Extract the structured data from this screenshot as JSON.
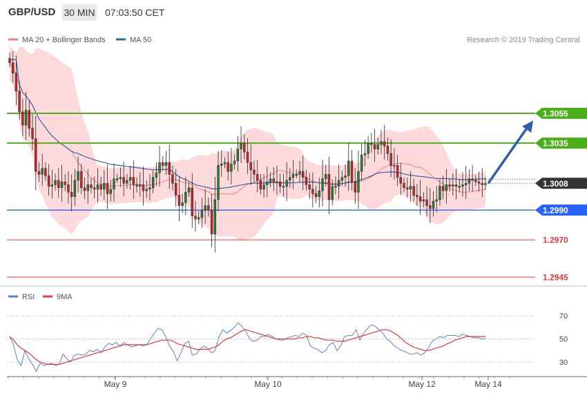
{
  "header": {
    "symbol": "GBP/USD",
    "timeframe": "30 MIN",
    "time": "07:03:50 CET"
  },
  "credit": "Research © 2019 Trading Central",
  "colors": {
    "bull_candle": "#2e7d32",
    "bear_candle": "#c62828",
    "bollinger_fill": "#fbd3d6",
    "ma20": "#f08080",
    "ma50": "#3a5fa8",
    "resistance": "#4caf1a",
    "support": "#2962ff",
    "target": "#e53935",
    "arrow": "#2f5da8",
    "rsi": "#5a7fd6",
    "rsi_ma": "#e53935",
    "price_tag": "#333333"
  },
  "chart_data": [
    {
      "type": "candlestick",
      "legend": [
        {
          "name": "MA 20 + Bollinger Bands",
          "color": "#f08080"
        },
        {
          "name": "MA 50",
          "color": "#3a5fa8"
        }
      ],
      "ylim": [
        1.2936,
        1.311
      ],
      "x_ticks": [
        "May 9",
        "May 10",
        "May 12",
        "May 14"
      ],
      "current_price": "1.3008",
      "levels": [
        {
          "label": "1.3055",
          "value": 1.3055,
          "kind": "resistance"
        },
        {
          "label": "1.3035",
          "value": 1.3035,
          "kind": "resistance"
        },
        {
          "label": "1.2990",
          "value": 1.299,
          "kind": "support"
        },
        {
          "label": "1.2970",
          "value": 1.297,
          "kind": "target"
        },
        {
          "label": "1.2945",
          "value": 1.2945,
          "kind": "target"
        }
      ],
      "projection": {
        "from": 1.3008,
        "to": 1.3052
      },
      "close": [
        1.3089,
        1.3082,
        1.307,
        1.3056,
        1.3047,
        1.3057,
        1.3045,
        1.3038,
        1.3016,
        1.3014,
        1.3018,
        1.3013,
        1.3006,
        1.3007,
        1.301,
        1.3005,
        1.3009,
        1.3007,
        1.3002,
        1.2999,
        1.301,
        1.3016,
        1.3005,
        1.3003,
        1.3007,
        1.3005,
        1.3004,
        1.3007,
        1.3004,
        1.3008,
        1.3001,
        1.3004,
        1.3011,
        1.3011,
        1.3012,
        1.3008,
        1.301,
        1.3012,
        1.3007,
        1.3006,
        1.3007,
        1.3003,
        1.3004,
        1.3005,
        1.3012,
        1.3015,
        1.3022,
        1.302,
        1.3022,
        1.3014,
        1.3008,
        1.3,
        1.2993,
        1.2995,
        1.3002,
        1.3005,
        1.2986,
        1.2984,
        1.2985,
        1.299,
        1.2993,
        1.299,
        1.2974,
        1.2997,
        1.302,
        1.3021,
        1.3022,
        1.3016,
        1.3021,
        1.3023,
        1.3031,
        1.3035,
        1.3029,
        1.3022,
        1.3017,
        1.3014,
        1.301,
        1.3004,
        1.3007,
        1.3009,
        1.3011,
        1.3009,
        1.3009,
        1.3006,
        1.3006,
        1.301,
        1.3012,
        1.3014,
        1.3014,
        1.3016,
        1.3012,
        1.3007,
        1.3004,
        1.3001,
        1.2999,
        1.3003,
        1.3011,
        1.3014,
        1.2997,
        1.3006,
        1.3006,
        1.301,
        1.3012,
        1.3013,
        1.3023,
        1.3009,
        1.3002,
        1.3016,
        1.3027,
        1.3028,
        1.3035,
        1.3034,
        1.3031,
        1.3034,
        1.3036,
        1.3033,
        1.3028,
        1.302,
        1.302,
        1.3012,
        1.3008,
        1.3005,
        1.3004,
        1.3006,
        1.3,
        1.2999,
        1.2996,
        1.2997,
        1.2993,
        1.2991,
        1.2996,
        1.2997,
        1.3006,
        1.3003,
        1.3007,
        1.3006,
        1.3007,
        1.3006,
        1.3006,
        1.3007,
        1.3008,
        1.3011,
        1.301,
        1.3009,
        1.3008,
        1.3007,
        1.3008
      ]
    },
    {
      "type": "line",
      "legend": [
        {
          "name": "RSI",
          "color": "#5a7fd6"
        },
        {
          "name": "9MA",
          "color": "#e53935"
        }
      ],
      "ylim": [
        18,
        82
      ],
      "y_ticks": [
        70,
        50,
        30
      ],
      "x_ticks": [
        "May 9",
        "May 10",
        "May 12",
        "May 14"
      ],
      "series": [
        {
          "name": "RSI",
          "values": [
            52,
            45,
            32,
            27,
            40,
            33,
            28,
            22,
            29,
            27,
            28,
            29,
            27,
            28,
            37,
            33,
            30,
            36,
            37,
            36,
            37,
            40,
            39,
            41,
            38,
            43,
            46,
            45,
            47,
            44,
            47,
            45,
            43,
            44,
            45,
            44,
            45,
            50,
            55,
            59,
            58,
            52,
            44,
            39,
            31,
            38,
            46,
            48,
            36,
            37,
            41,
            44,
            42,
            38,
            40,
            52,
            58,
            55,
            57,
            60,
            64,
            61,
            57,
            50,
            48,
            49,
            52,
            52,
            54,
            52,
            50,
            49,
            49,
            51,
            52,
            53,
            52,
            55,
            53,
            44,
            42,
            41,
            38,
            40,
            45,
            47,
            40,
            44,
            52,
            53,
            53,
            58,
            49,
            55,
            59,
            62,
            61,
            58,
            55,
            50,
            48,
            44,
            42,
            40,
            39,
            37,
            37,
            38,
            36,
            38,
            42,
            48,
            50,
            52,
            51,
            53,
            53,
            53,
            52,
            54,
            53,
            52,
            51,
            51,
            50,
            50
          ]
        },
        {
          "name": "9MA",
          "values": [
            52,
            49,
            45,
            42,
            40,
            38,
            35,
            32,
            30,
            29,
            28,
            28,
            28,
            28,
            29,
            30,
            31,
            32,
            33,
            34,
            35,
            36,
            37,
            38,
            39,
            40,
            41,
            42,
            43,
            44,
            45,
            45,
            45,
            45,
            45,
            45,
            45,
            46,
            47,
            48,
            49,
            49,
            49,
            48,
            46,
            45,
            44,
            43,
            42,
            41,
            41,
            41,
            41,
            42,
            43,
            45,
            48,
            50,
            51,
            53,
            55,
            57,
            58,
            57,
            56,
            55,
            54,
            53,
            52,
            51,
            50,
            50,
            50,
            50,
            50,
            50,
            51,
            51,
            52,
            52,
            51,
            51,
            50,
            49,
            49,
            49,
            48,
            48,
            48,
            49,
            50,
            51,
            52,
            53,
            54,
            55,
            56,
            57,
            58,
            58,
            57,
            55,
            53,
            50,
            47,
            45,
            43,
            42,
            41,
            40,
            40,
            41,
            42,
            43,
            44,
            46,
            47,
            49,
            50,
            51,
            52,
            52,
            52,
            52,
            52,
            52
          ]
        }
      ]
    }
  ]
}
